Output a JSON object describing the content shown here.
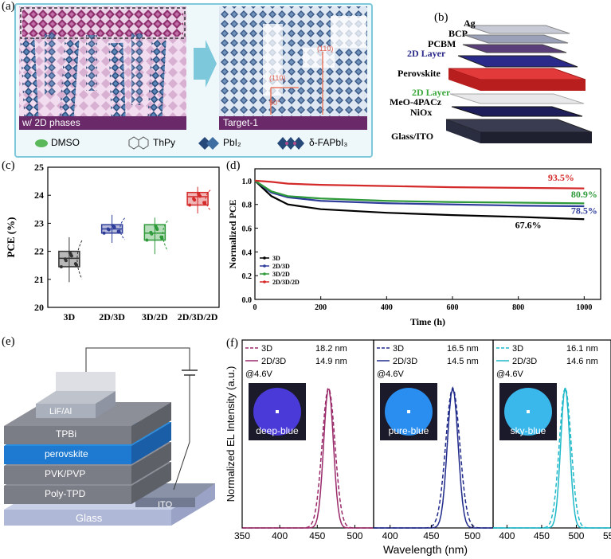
{
  "panel_a": {
    "label": "(a)",
    "left_caption": "w/ 2D phases",
    "right_caption": "Target-1",
    "plane_labels": [
      "(110)",
      "(110)",
      "90°"
    ],
    "legend": [
      "DMSO",
      "ThPy",
      "PbI₂",
      "δ-FAPbI₃"
    ]
  },
  "panel_b": {
    "label": "(b)",
    "layers": [
      "Ag",
      "BCP",
      "PCBM",
      "2D Layer",
      "Perovskite",
      "2D Layer",
      "MeO-4PACz",
      "NiOx",
      "Glass/ITO"
    ],
    "colors": {
      "top_2d": "#2a2a8a",
      "bottom_2d": "#3aa83a",
      "perovskite": "#d42020"
    }
  },
  "panel_c": {
    "label": "(c)"
  },
  "panel_d": {
    "label": "(d)"
  },
  "panel_e": {
    "label": "(e)",
    "layers": [
      "LiF/Al",
      "TPBi",
      "perovskite",
      "PVK/PVP",
      "Poly-TPD",
      "ITO",
      "Glass"
    ]
  },
  "panel_f": {
    "label": "(f)",
    "bias": "@4.6V",
    "photo_labels": [
      "deep-blue",
      "pure-blue",
      "sky-blue"
    ]
  },
  "chart_data": [
    {
      "type": "box",
      "ylabel": "PCE (%)",
      "categories": [
        "3D",
        "2D/3D",
        "3D/2D",
        "2D/3D/2D"
      ],
      "ylim": [
        20,
        25
      ],
      "yticks": [
        "20",
        "21",
        "22",
        "23",
        "24",
        "25"
      ],
      "colors": [
        "#333333",
        "#2e3c9a",
        "#2e9a3a",
        "#d42a2a"
      ],
      "boxes": [
        {
          "q1": 21.45,
          "median": 21.75,
          "q3": 22.0,
          "min": 20.9,
          "max": 22.5
        },
        {
          "q1": 22.65,
          "median": 22.8,
          "q3": 22.95,
          "min": 22.3,
          "max": 23.3
        },
        {
          "q1": 22.4,
          "median": 22.65,
          "q3": 22.95,
          "min": 21.9,
          "max": 23.2
        },
        {
          "q1": 23.65,
          "median": 23.95,
          "q3": 24.1,
          "min": 23.35,
          "max": 24.3
        }
      ]
    },
    {
      "type": "line",
      "xlabel": "Time (h)",
      "ylabel": "Normalized PCE",
      "xlim": [
        0,
        1050
      ],
      "ylim": [
        0,
        1.1
      ],
      "xticks": [
        "0",
        "200",
        "400",
        "600",
        "800",
        "1000"
      ],
      "yticks": [
        "0.0",
        "0.2",
        "0.4",
        "0.6",
        "0.8",
        "1.0"
      ],
      "series": [
        {
          "name": "3D",
          "color": "#000000",
          "x": [
            0,
            50,
            100,
            200,
            400,
            600,
            800,
            1000
          ],
          "y": [
            1.0,
            0.87,
            0.8,
            0.76,
            0.73,
            0.71,
            0.695,
            0.676
          ]
        },
        {
          "name": "2D/3D",
          "color": "#2e3c9a",
          "x": [
            0,
            50,
            100,
            200,
            400,
            600,
            800,
            1000
          ],
          "y": [
            1.0,
            0.9,
            0.86,
            0.83,
            0.81,
            0.8,
            0.79,
            0.785
          ]
        },
        {
          "name": "3D/2D",
          "color": "#2e9a3a",
          "x": [
            0,
            50,
            100,
            200,
            400,
            600,
            800,
            1000
          ],
          "y": [
            1.0,
            0.91,
            0.87,
            0.85,
            0.83,
            0.82,
            0.815,
            0.809
          ]
        },
        {
          "name": "2D/3D/2D",
          "color": "#d42a2a",
          "x": [
            0,
            50,
            100,
            200,
            400,
            600,
            800,
            1000
          ],
          "y": [
            1.0,
            0.99,
            0.975,
            0.965,
            0.955,
            0.945,
            0.94,
            0.935
          ]
        }
      ],
      "annotations": [
        "93.5%",
        "80.9%",
        "78.5%",
        "67.6%"
      ]
    },
    {
      "type": "line",
      "xlabel": "Wavelength (nm)",
      "ylabel": "Normalized EL Intensity (a.u.)",
      "xticks": [
        "350",
        "400",
        "450",
        "500",
        "400",
        "450",
        "500",
        "400",
        "450",
        "500",
        "550"
      ],
      "subplots": [
        {
          "color": "#9a2a6a",
          "peak": 465,
          "legend": [
            "3D",
            "2D/3D"
          ],
          "fwhm": [
            "18.2 nm",
            "14.9 nm"
          ]
        },
        {
          "color": "#1f2a8a",
          "peak": 476,
          "legend": [
            "3D",
            "2D/3D"
          ],
          "fwhm": [
            "16.5 nm",
            "14.5 nm"
          ]
        },
        {
          "color": "#1fb8c8",
          "peak": 484,
          "legend": [
            "3D",
            "2D/3D"
          ],
          "fwhm": [
            "16.1 nm",
            "14.6 nm"
          ]
        }
      ]
    }
  ]
}
